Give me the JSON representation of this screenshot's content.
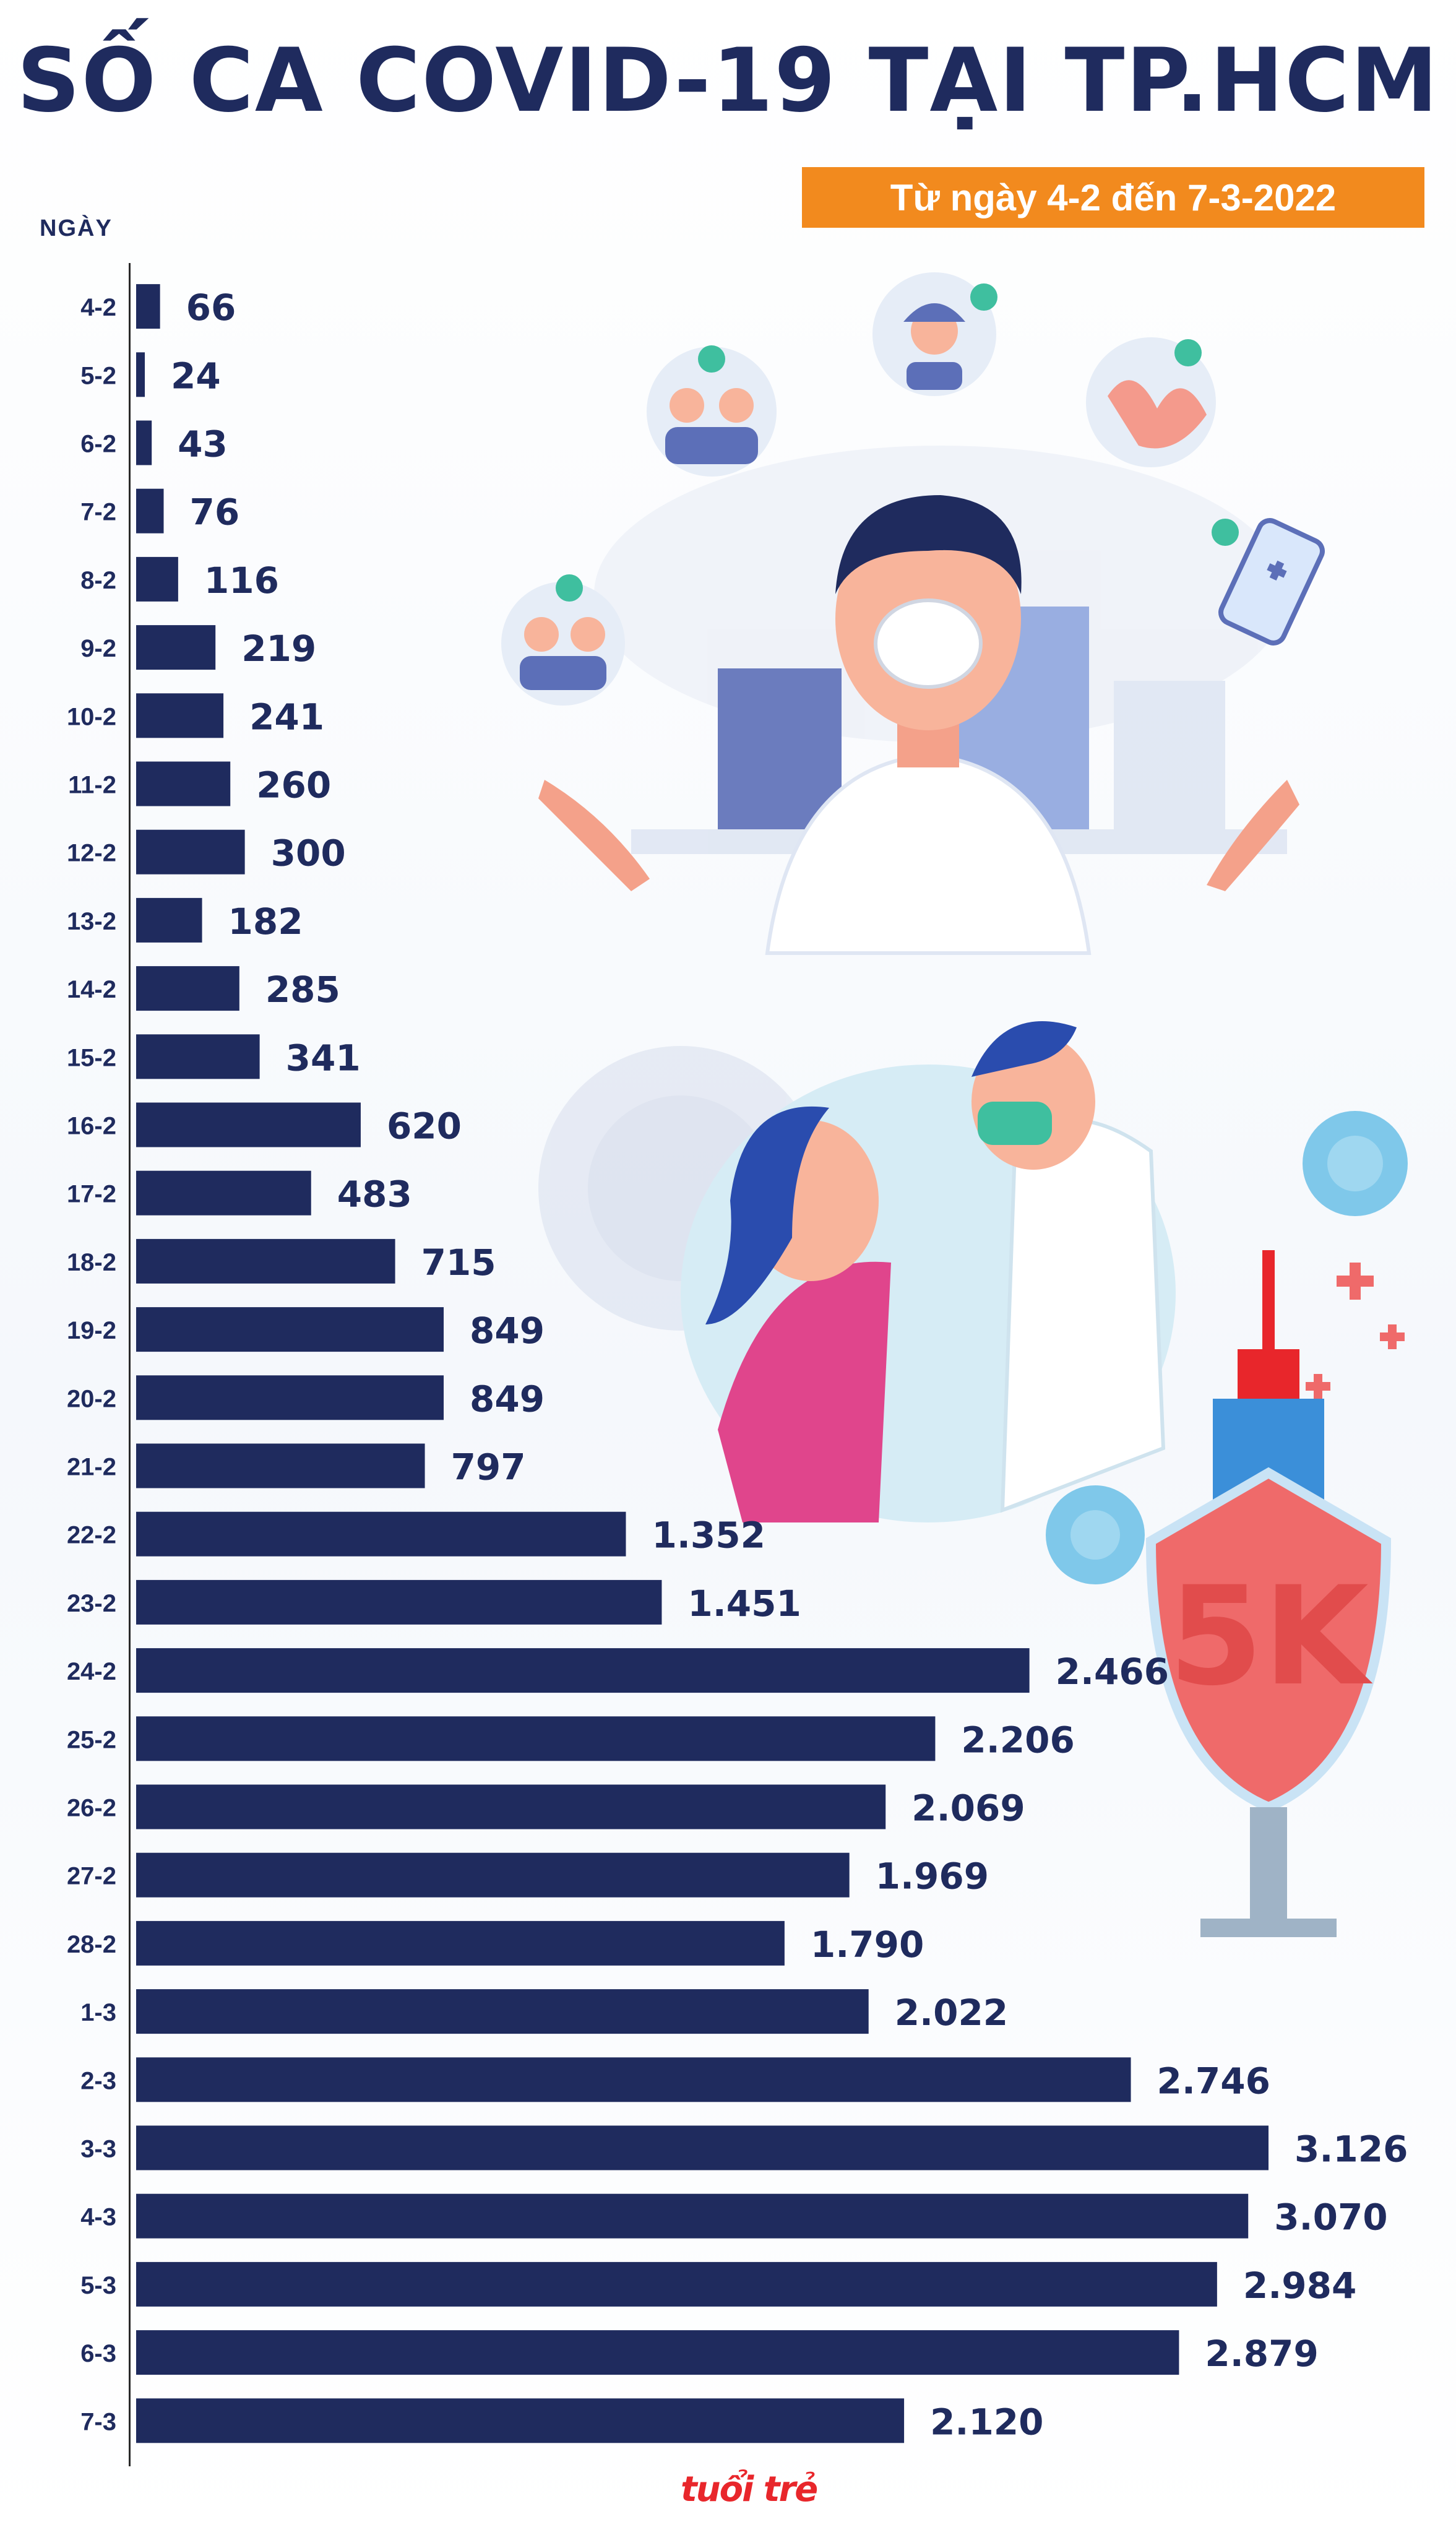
{
  "title": "SỐ CA COVID-19 TẠI TP.HCM",
  "subtitle": "Từ ngày 4-2 đến 7-3-2022",
  "axis_title": "NGÀY",
  "illustration_label": "5K",
  "logo_text": "tuổi trẻ",
  "colors": {
    "bar": "#1f2b5e",
    "accent": "#f28a1e",
    "text": "#1f2b5e"
  },
  "chart_data": {
    "type": "bar",
    "orientation": "horizontal",
    "title": "SỐ CA COVID-19 TẠI TP.HCM",
    "subtitle": "Từ ngày 4-2 đến 7-3-2022",
    "ylabel": "NGÀY",
    "xlim": [
      0,
      3126
    ],
    "grid": false,
    "categories": [
      "4-2",
      "5-2",
      "6-2",
      "7-2",
      "8-2",
      "9-2",
      "10-2",
      "11-2",
      "12-2",
      "13-2",
      "14-2",
      "15-2",
      "16-2",
      "17-2",
      "18-2",
      "19-2",
      "20-2",
      "21-2",
      "22-2",
      "23-2",
      "24-2",
      "25-2",
      "26-2",
      "27-2",
      "28-2",
      "1-3",
      "2-3",
      "3-3",
      "4-3",
      "5-3",
      "6-3",
      "7-3"
    ],
    "values": [
      66,
      24,
      43,
      76,
      116,
      219,
      241,
      260,
      300,
      182,
      285,
      341,
      620,
      483,
      715,
      849,
      849,
      797,
      1352,
      1451,
      2466,
      2206,
      2069,
      1969,
      1790,
      2022,
      2746,
      3126,
      3070,
      2984,
      2879,
      2120
    ],
    "value_labels": [
      "66",
      "24",
      "43",
      "76",
      "116",
      "219",
      "241",
      "260",
      "300",
      "182",
      "285",
      "341",
      "620",
      "483",
      "715",
      "849",
      "849",
      "797",
      "1.352",
      "1.451",
      "2.466",
      "2.206",
      "2.069",
      "1.969",
      "1.790",
      "2.022",
      "2.746",
      "3.126",
      "3.070",
      "2.984",
      "2.879",
      "2.120"
    ]
  }
}
